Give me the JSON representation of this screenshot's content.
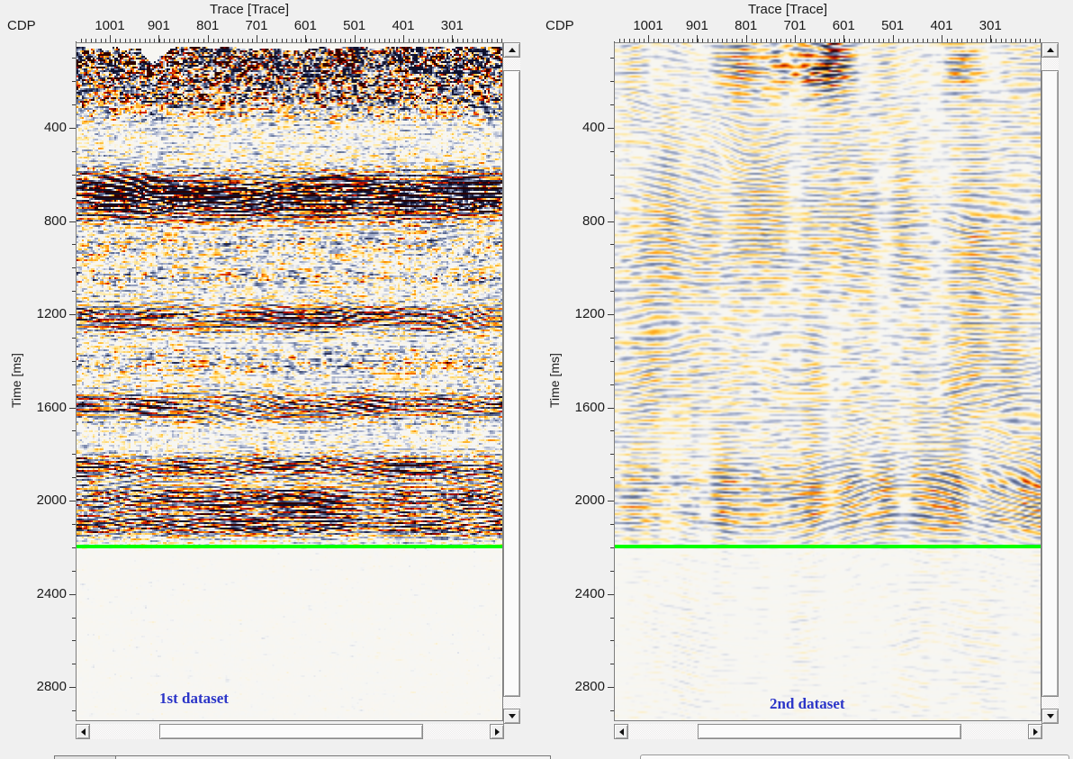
{
  "window": {
    "background": "#f0f0f0"
  },
  "colors": {
    "horizon_line": "#00ff00",
    "dataset_label": "#2b35c8",
    "axis_text": "#1a1a1a"
  },
  "panels": [
    {
      "name": "seismic-view-1",
      "corner_label": "CDP",
      "top_axis": {
        "title": "Trace [Trace]",
        "ticks": [
          "1001",
          "901",
          "801",
          "701",
          "601",
          "501",
          "401",
          "301"
        ]
      },
      "left_axis": {
        "title": "Time [ms]",
        "ticks": [
          "400",
          "800",
          "1200",
          "1600",
          "2000",
          "2400",
          "2800"
        ]
      },
      "dataset_label": "1st dataset",
      "horizon_line_time_ms": 2200,
      "render_style": "high-amplitude"
    },
    {
      "name": "seismic-view-2",
      "corner_label": "CDP",
      "top_axis": {
        "title": "Trace [Trace]",
        "ticks": [
          "1001",
          "901",
          "801",
          "701",
          "601",
          "501",
          "401",
          "301"
        ]
      },
      "left_axis": {
        "title": "Time [ms]",
        "ticks": [
          "400",
          "800",
          "1200",
          "1600",
          "2000",
          "2400",
          "2800"
        ]
      },
      "dataset_label": "2nd dataset",
      "horizon_line_time_ms": 2200,
      "render_style": "low-amplitude"
    }
  ]
}
